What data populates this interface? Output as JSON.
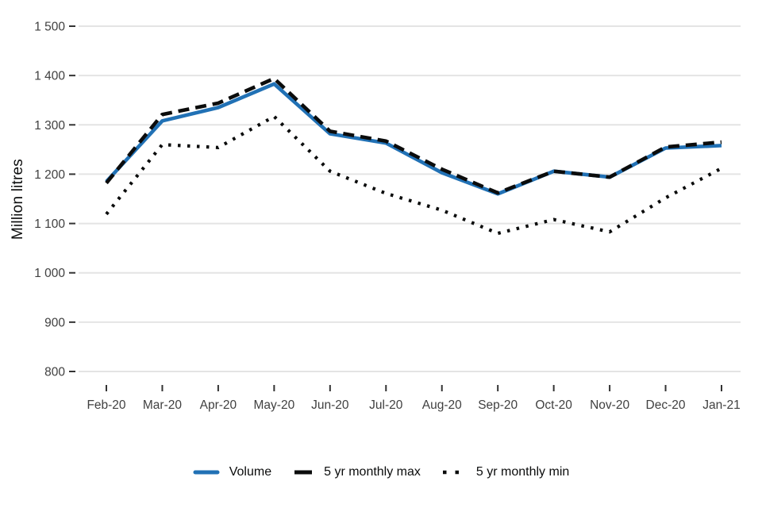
{
  "chart_data": {
    "type": "line",
    "title": "",
    "xlabel": "",
    "ylabel": "Million litres",
    "categories": [
      "Feb-20",
      "Mar-20",
      "Apr-20",
      "May-20",
      "Jun-20",
      "Jul-20",
      "Aug-20",
      "Sep-20",
      "Oct-20",
      "Nov-20",
      "Dec-20",
      "Jan-21"
    ],
    "series": [
      {
        "name": "Volume",
        "style": "solid",
        "color": "#2171b5",
        "values": [
          1185,
          1308,
          1335,
          1383,
          1282,
          1263,
          1203,
          1160,
          1206,
          1194,
          1253,
          1258
        ]
      },
      {
        "name": "5 yr monthly max",
        "style": "dashed",
        "color": "#0b0c0c",
        "values": [
          1182,
          1321,
          1344,
          1394,
          1287,
          1267,
          1210,
          1162,
          1206,
          1194,
          1255,
          1265
        ]
      },
      {
        "name": "5 yr monthly min",
        "style": "dotted",
        "color": "#0b0c0c",
        "values": [
          1119,
          1260,
          1254,
          1317,
          1206,
          1161,
          1127,
          1080,
          1108,
          1083,
          1152,
          1212
        ]
      }
    ],
    "ylim": [
      800,
      1500
    ],
    "yticks": [
      800,
      900,
      1000,
      1100,
      1200,
      1300,
      1400,
      1500
    ],
    "ytick_labels": [
      "800",
      "900",
      "1 000",
      "1 100",
      "1 200",
      "1 300",
      "1 400",
      "1 500"
    ],
    "grid": "horizontal-only",
    "legend_position": "bottom-center"
  },
  "colors": {
    "volume_line": "#2171b5",
    "max_min_line": "#0b0c0c",
    "gridline": "#e4e4e4",
    "tick_mark": "#333333",
    "tick_label": "#404040",
    "background": "#ffffff"
  }
}
